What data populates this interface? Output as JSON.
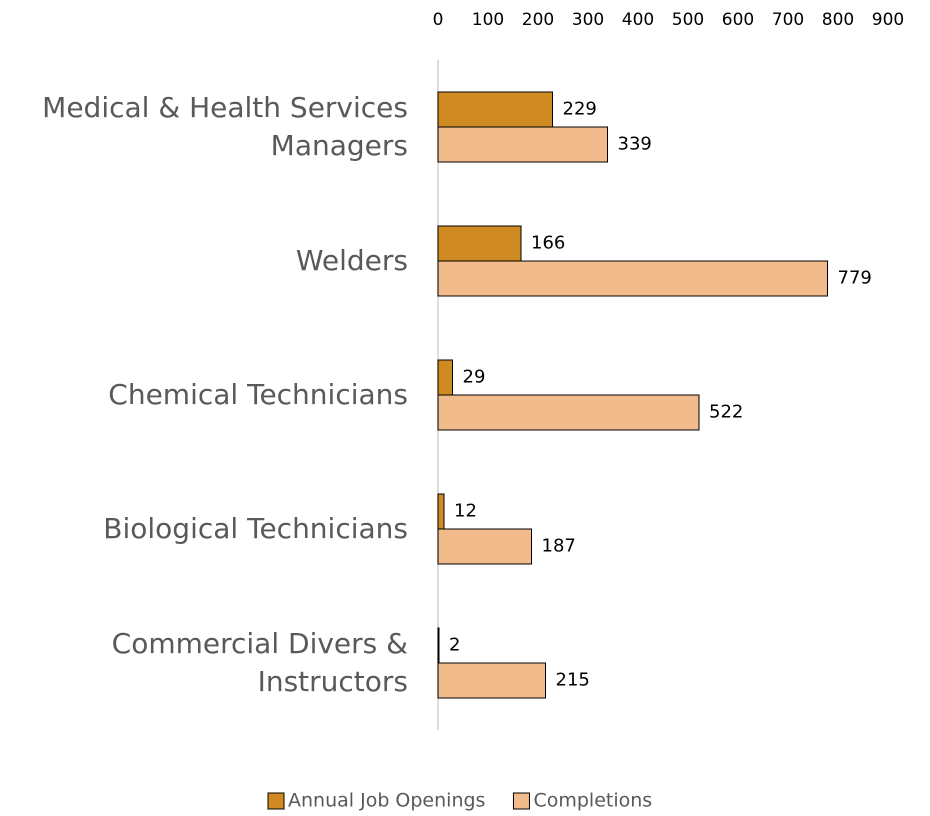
{
  "chart_data": {
    "type": "hbar",
    "categories": [
      "Medical & Health Services Managers",
      "Welders",
      "Chemical Technicians",
      "Biological Technicians",
      "Commercial Divers & Instructors"
    ],
    "series": [
      {
        "name": "Annual Job Openings",
        "color": "#d08a22",
        "values": [
          229,
          166,
          29,
          12,
          2
        ]
      },
      {
        "name": "Completions",
        "color": "#f2bb8c",
        "values": [
          339,
          779,
          522,
          187,
          215
        ]
      }
    ],
    "xlim": [
      0,
      900
    ],
    "xticks": [
      0,
      100,
      200,
      300,
      400,
      500,
      600,
      700,
      800,
      900
    ],
    "legend": "bottom"
  }
}
